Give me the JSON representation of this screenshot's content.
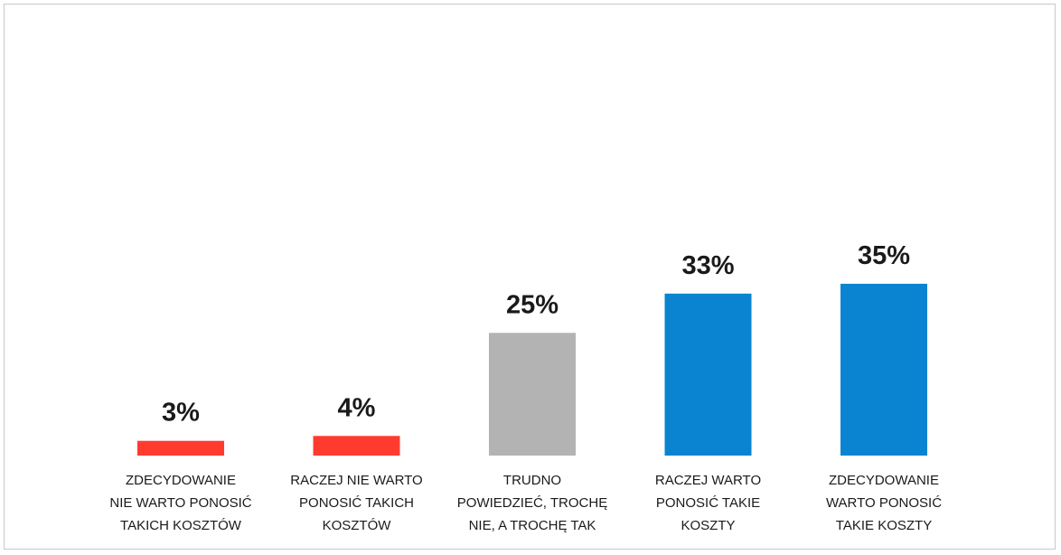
{
  "chart_data": {
    "type": "bar",
    "categories": [
      [
        "ZDECYDOWANIE",
        "NIE WARTO PONOSIĆ",
        "TAKICH KOSZTÓW"
      ],
      [
        "RACZEJ NIE WARTO",
        "PONOSIĆ TAKICH",
        "KOSZTÓW"
      ],
      [
        "TRUDNO",
        "POWIEDZIEĆ, TROCHĘ",
        "NIE, A TROCHĘ TAK"
      ],
      [
        "RACZEJ WARTO",
        "PONOSIĆ TAKIE",
        "KOSZTY"
      ],
      [
        "ZDECYDOWANIE",
        "WARTO PONOSIĆ",
        "TAKIE KOSZTY"
      ]
    ],
    "values": [
      3,
      4,
      25,
      33,
      35
    ],
    "value_labels": [
      "3%",
      "4%",
      "25%",
      "33%",
      "35%"
    ],
    "colors": [
      "#ff3b2f",
      "#ff3b2f",
      "#b3b3b3",
      "#0a84d0",
      "#0a84d0"
    ],
    "ylim": [
      0,
      60
    ],
    "grid": false,
    "legend": "none"
  }
}
